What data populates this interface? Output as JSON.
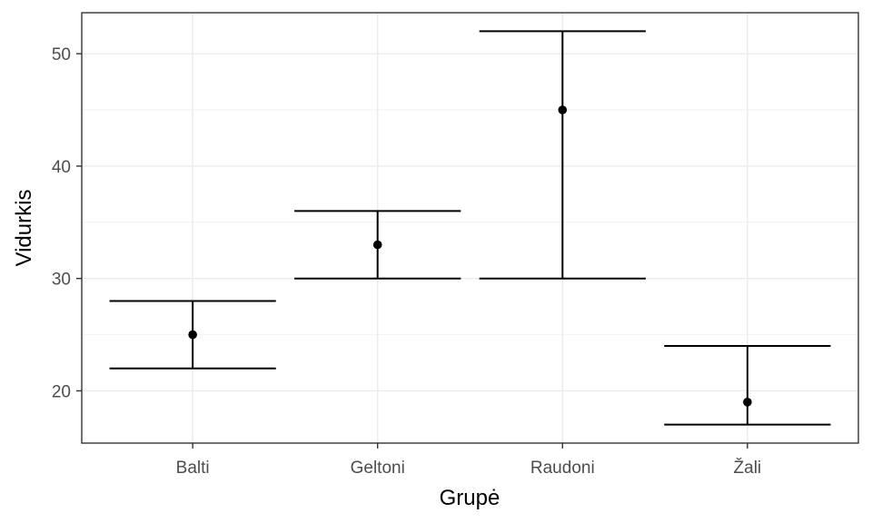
{
  "chart_data": {
    "type": "errorbar",
    "title": "",
    "xlabel": "Grupė",
    "ylabel": "Vidurkis",
    "categories": [
      "Balti",
      "Geltoni",
      "Raudoni",
      "Žali"
    ],
    "mean": [
      25,
      33,
      45,
      19
    ],
    "lower": [
      22,
      30,
      30,
      17
    ],
    "upper": [
      28,
      36,
      52,
      24
    ],
    "ylim": [
      15.35,
      53.65
    ],
    "yticks": [
      20,
      30,
      40,
      50
    ],
    "grid": true,
    "legend": "none"
  }
}
